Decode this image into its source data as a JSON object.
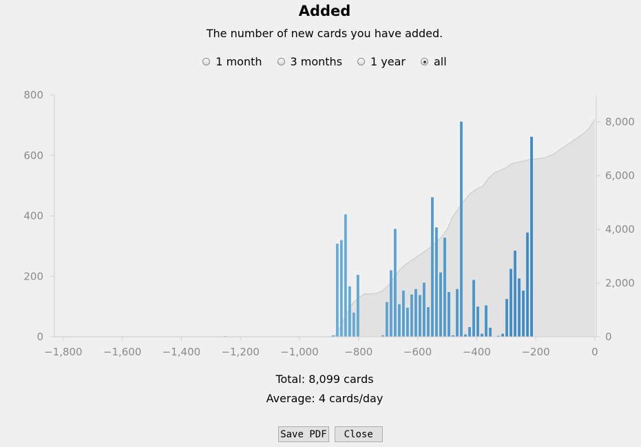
{
  "header": {
    "title": "Added",
    "subtitle": "The number of new cards you have added."
  },
  "range_options": [
    {
      "label": "1 month",
      "selected": false
    },
    {
      "label": "3 months",
      "selected": false
    },
    {
      "label": "1 year",
      "selected": false
    },
    {
      "label": "all",
      "selected": true
    }
  ],
  "summary": {
    "total": "Total: 8,099 cards",
    "average": "Average: 4 cards/day"
  },
  "buttons": {
    "save_pdf": "Save PDF",
    "close": "Close"
  },
  "colors": {
    "bar_light": "#6aaed6",
    "bar_dark": "#2f7ebc",
    "cumulative_fill": "#e2e2e2",
    "cumulative_line": "#cccccc",
    "axis": "#d0d0d0",
    "tick_text": "#8a8a8a"
  },
  "chart_data": {
    "type": "bar",
    "xlim": [
      -1830,
      5
    ],
    "ylim": [
      0,
      800
    ],
    "y2lim": [
      0,
      9000
    ],
    "x_ticks": [
      -1800,
      -1600,
      -1400,
      -1200,
      -1000,
      -800,
      -600,
      -400,
      -200,
      0
    ],
    "x_tick_labels": [
      "−1,800",
      "−1,600",
      "−1,400",
      "−1,200",
      "−1,000",
      "−800",
      "−600",
      "−400",
      "−200",
      "0"
    ],
    "y_ticks": [
      0,
      200,
      400,
      600,
      800
    ],
    "y_tick_labels": [
      "0",
      "200",
      "400",
      "600",
      "800"
    ],
    "y2_ticks": [
      0,
      2000,
      4000,
      6000,
      8000
    ],
    "y2_tick_labels": [
      "0",
      "2,000",
      "4,000",
      "6,000",
      "8,000"
    ],
    "bin_width": 14,
    "series": [
      {
        "kind": "bars",
        "x": [
          -1250,
          -886,
          -872,
          -858,
          -844,
          -830,
          -816,
          -802,
          -788,
          -718,
          -704,
          -690,
          -676,
          -662,
          -648,
          -634,
          -620,
          -606,
          -592,
          -578,
          -564,
          -550,
          -536,
          -522,
          -508,
          -494,
          -480,
          -466,
          -452,
          -438,
          -424,
          -410,
          -396,
          -382,
          -368,
          -354,
          -340,
          -326,
          -312,
          -298,
          -284,
          -270,
          -256,
          -242,
          -228,
          -214,
          -200,
          -186,
          -172,
          -158,
          -144,
          -130,
          -116,
          -102,
          -88,
          -74,
          -60,
          -46,
          -32,
          -18,
          -4
        ],
        "values": [
          2,
          5,
          308,
          320,
          405,
          167,
          80,
          205,
          0,
          5,
          115,
          220,
          357,
          108,
          153,
          96,
          140,
          158,
          138,
          179,
          98,
          462,
          362,
          213,
          328,
          148,
          5,
          158,
          712,
          8,
          32,
          188,
          100,
          10,
          104,
          30,
          0,
          3,
          10,
          125,
          225,
          285,
          193,
          153,
          345,
          662,
          0,
          0,
          0,
          0,
          0,
          0,
          0,
          0,
          0,
          0,
          0,
          0,
          0,
          0,
          0
        ]
      },
      {
        "kind": "cumulative",
        "x": [
          -1830,
          -900,
          -880,
          -860,
          -840,
          -820,
          -800,
          -780,
          -760,
          -740,
          -720,
          -700,
          -680,
          -660,
          -640,
          -620,
          -600,
          -580,
          -560,
          -540,
          -520,
          -500,
          -480,
          -460,
          -440,
          -420,
          -400,
          -380,
          -360,
          -340,
          -320,
          -300,
          -280,
          -260,
          -240,
          -220,
          -200,
          -180,
          -160,
          -140,
          -120,
          -100,
          -80,
          -60,
          -40,
          -20,
          0
        ],
        "values": [
          0,
          0,
          20,
          400,
          850,
          1250,
          1450,
          1600,
          1600,
          1620,
          1700,
          1900,
          2200,
          2500,
          2700,
          2850,
          3000,
          3150,
          3300,
          3500,
          3700,
          4000,
          4500,
          4800,
          5100,
          5350,
          5500,
          5600,
          5900,
          6100,
          6200,
          6300,
          6450,
          6500,
          6550,
          6600,
          6620,
          6650,
          6700,
          6800,
          6950,
          7100,
          7250,
          7400,
          7550,
          7750,
          8100
        ]
      }
    ]
  }
}
